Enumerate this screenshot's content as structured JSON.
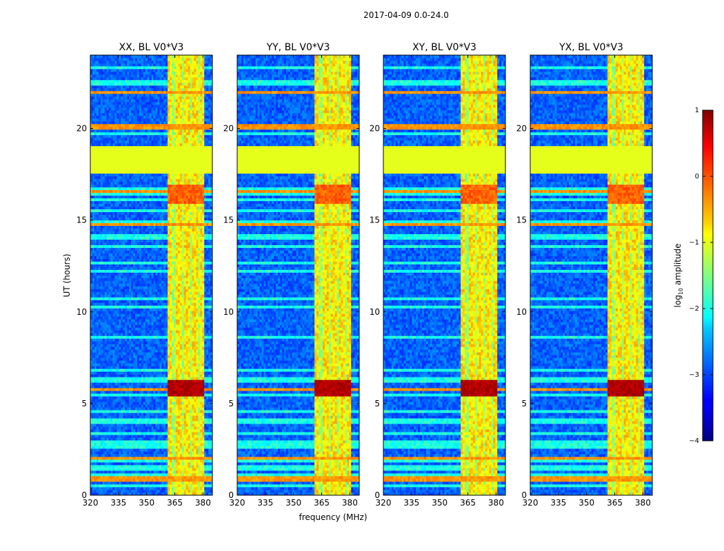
{
  "chart_data": {
    "type": "heatmap",
    "suptitle": "2017-04-09 0.0-24.0",
    "xlabel": "frequency (MHz)",
    "ylabel": "UT (hours)",
    "xlim": [
      320,
      385
    ],
    "ylim": [
      0,
      24
    ],
    "xticks": [
      "320",
      "335",
      "350",
      "365",
      "380"
    ],
    "yticks": [
      "0",
      "5",
      "10",
      "15",
      "20"
    ],
    "panels": [
      {
        "title": "XX, BL V0*V3",
        "peak_ut": 5.8
      },
      {
        "title": "YY, BL V0*V3",
        "peak_ut": 5.8
      },
      {
        "title": "XY, BL V0*V3",
        "peak_ut": 5.8
      },
      {
        "title": "YX, BL V0*V3",
        "peak_ut": 5.8
      }
    ],
    "strong_freq_band_mhz": [
      361,
      381
    ],
    "bright_channels_mhz": [
      362.5,
      367,
      371.5,
      376,
      380
    ],
    "flagged_ut_range": [
      17.6,
      19.0
    ],
    "flag_fill_log10": -1.0,
    "rfi_rows_ut": [
      0.9,
      2.0,
      5.75,
      14.8,
      16.6,
      20.1,
      22.0
    ],
    "colorbar": {
      "label": "log10 amplitude",
      "range": [
        -4,
        1
      ],
      "ticks": [
        "−4",
        "−3",
        "−2",
        "−1",
        "0",
        "1"
      ],
      "colormap": "jet"
    }
  }
}
